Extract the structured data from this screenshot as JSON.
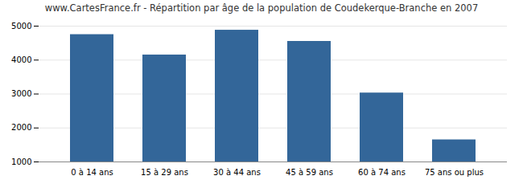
{
  "chart_data": {
    "type": "bar",
    "title": "www.CartesFrance.fr - Répartition par âge de la population de Coudekerque-Branche en 2007",
    "categories": [
      "0 à 14 ans",
      "15 à 29 ans",
      "30 à 44 ans",
      "45 à 59 ans",
      "60 à 74 ans",
      "75 ans ou plus"
    ],
    "values": [
      4750,
      4150,
      4880,
      4550,
      3030,
      1650
    ],
    "color": "#336699",
    "ylim": [
      1000,
      5000
    ],
    "yticks": [
      1000,
      2000,
      3000,
      4000,
      5000
    ],
    "grid": true
  }
}
